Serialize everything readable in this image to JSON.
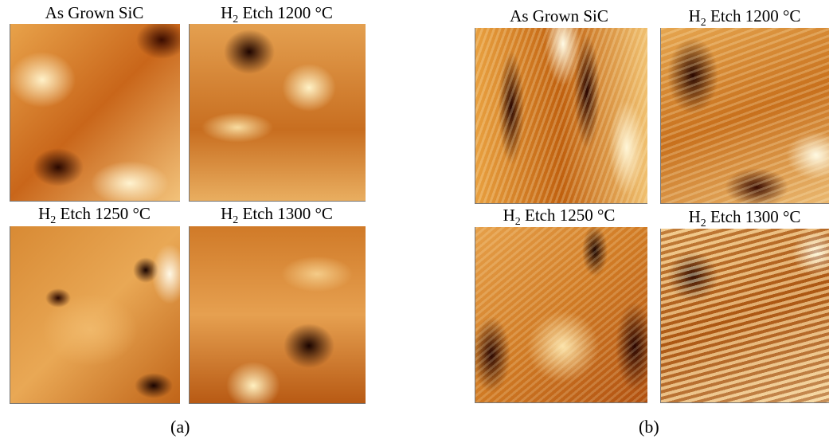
{
  "panels": [
    {
      "label": "(a)",
      "images": [
        {
          "title": [
            "As Grown SiC"
          ]
        },
        {
          "title": [
            "H",
            "2",
            " Etch 1200 °C"
          ]
        },
        {
          "title": [
            "H",
            "2",
            " Etch 1250 °C"
          ]
        },
        {
          "title": [
            "H",
            "2",
            " Etch 1300 °C"
          ]
        }
      ]
    },
    {
      "label": "(b)",
      "images": [
        {
          "title": [
            "As Grown SiC"
          ]
        },
        {
          "title": [
            "H",
            "2",
            " Etch 1200 °C"
          ]
        },
        {
          "title": [
            "H",
            "2",
            " Etch 1250 °C"
          ]
        },
        {
          "title": [
            "H",
            "2",
            " Etch 1300 °C"
          ]
        }
      ]
    }
  ]
}
